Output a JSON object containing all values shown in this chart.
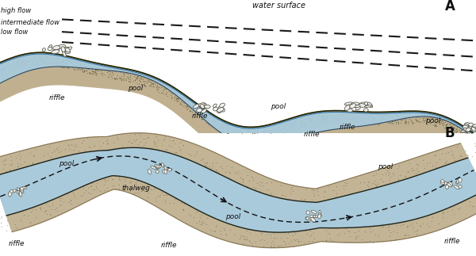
{
  "bg_color": "#ffffff",
  "water_color": "#a8cce0",
  "water_edge_color": "#3377aa",
  "gravel_color": "#c0b090",
  "gravel_dark": "#8a7a50",
  "dashed_color": "#1a1a1a",
  "text_color": "#111111",
  "label_A": "A",
  "label_B": "B",
  "label_high_flow": "high flow",
  "label_intermediate": "intermediate flow",
  "label_low_flow": "low flow",
  "label_water_surface": "water surface",
  "label_thalweg": "thalweg",
  "label_pool": "pool",
  "label_riffle": "riffle",
  "fig_width": 6.0,
  "fig_height": 3.23,
  "dpi": 100,
  "stipple_color": "#555533",
  "cobble_face": "#eeeeee",
  "cobble_edge": "#444433"
}
